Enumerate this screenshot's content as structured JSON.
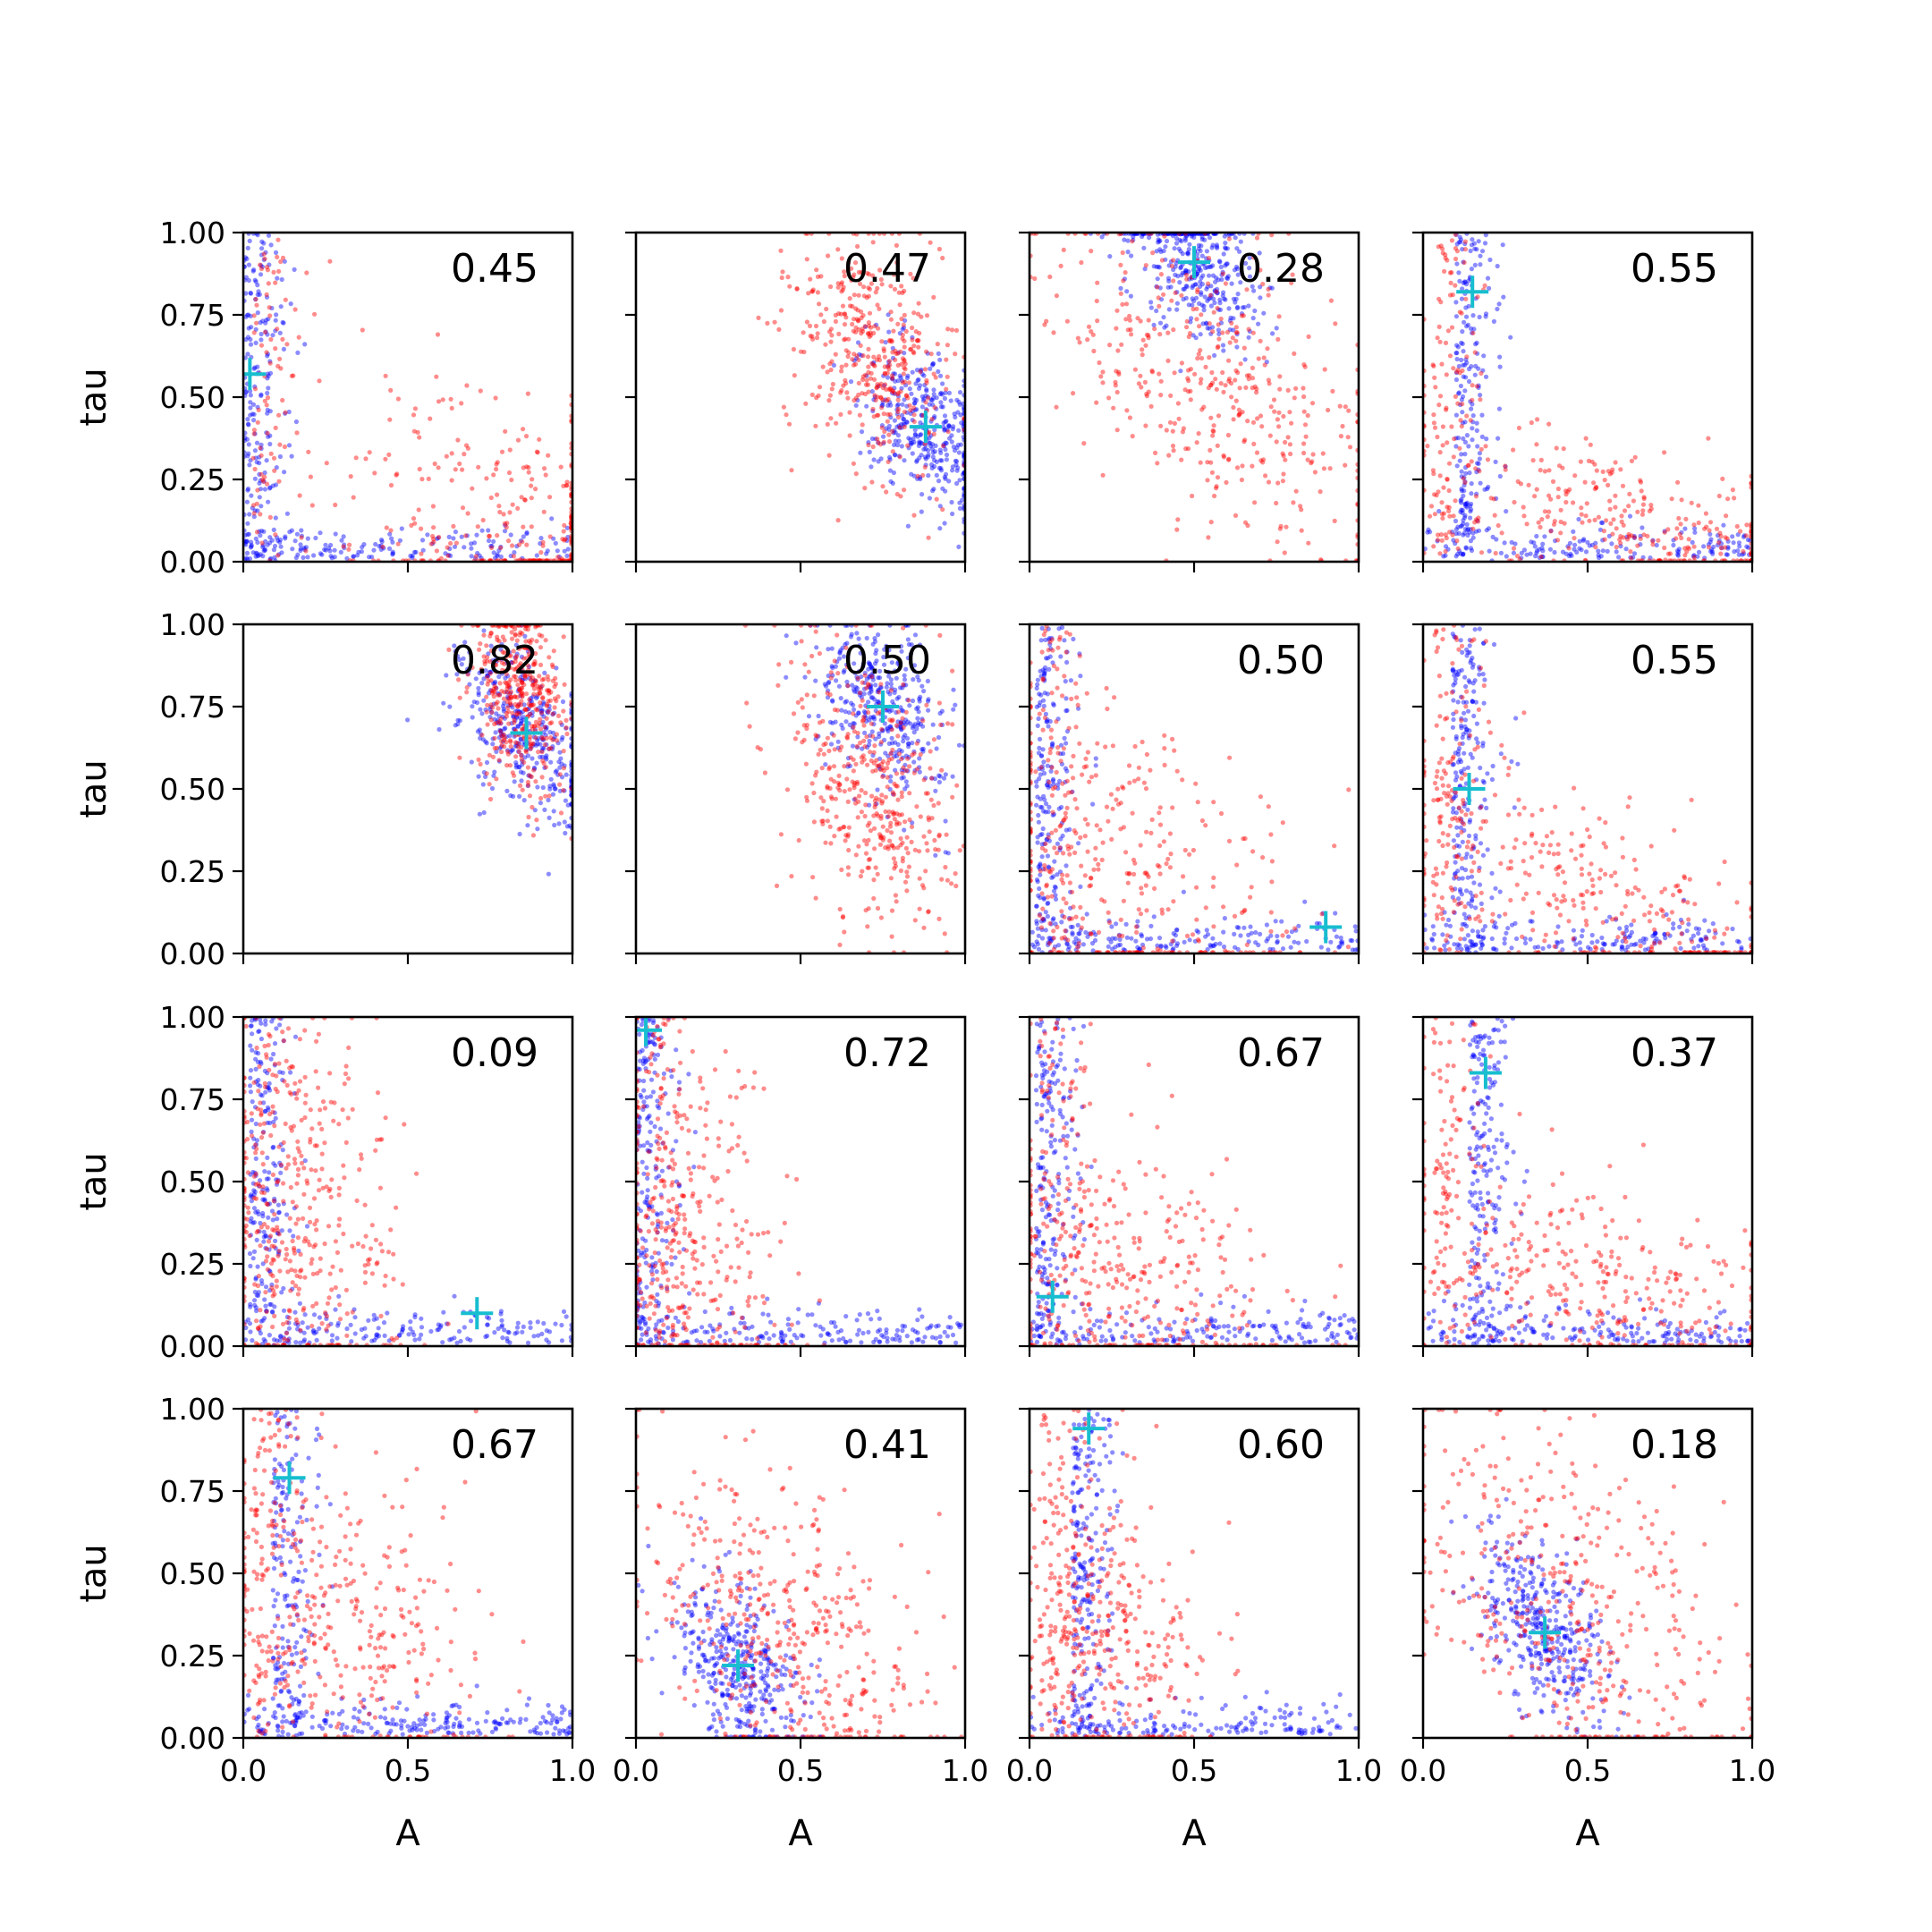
{
  "chart_data": {
    "type": "scatter",
    "layout": "4x4 grid of subplots",
    "shared_x": true,
    "shared_y": true,
    "xlabel": "A",
    "ylabel": "tau",
    "xlim": [
      0,
      1
    ],
    "ylim": [
      0,
      1
    ],
    "xticks": [
      "0.0",
      "0.5",
      "1.0"
    ],
    "yticks": [
      "0.00",
      "0.25",
      "0.50",
      "0.75",
      "1.00"
    ],
    "grid": false,
    "colors": {
      "series_a": "#ff0000",
      "series_b": "#0000ff",
      "marker": "#17becf"
    },
    "panels": [
      {
        "row": 0,
        "col": 0,
        "label": "0.45",
        "marker": [
          0.02,
          0.57
        ],
        "shape": "L",
        "red": {
          "cx": 0.85,
          "cy": 0.08,
          "sx": 0.25,
          "sy": 0.2
        }
      },
      {
        "row": 0,
        "col": 1,
        "label": "0.47",
        "marker": [
          0.88,
          0.41
        ],
        "shape": "blob",
        "red": {
          "cx": 0.72,
          "cy": 0.62,
          "sx": 0.12,
          "sy": 0.18
        }
      },
      {
        "row": 0,
        "col": 2,
        "label": "0.28",
        "marker": [
          0.5,
          0.91
        ],
        "shape": "blob",
        "red": {
          "cx": 0.55,
          "cy": 0.55,
          "sx": 0.25,
          "sy": 0.22
        }
      },
      {
        "row": 0,
        "col": 3,
        "label": "0.55",
        "marker": [
          0.15,
          0.82
        ],
        "shape": "L",
        "red": {
          "cx": 0.6,
          "cy": 0.12,
          "sx": 0.3,
          "sy": 0.1
        }
      },
      {
        "row": 1,
        "col": 0,
        "label": "0.82",
        "marker": [
          0.86,
          0.67
        ],
        "shape": "blob",
        "red": {
          "cx": 0.84,
          "cy": 0.78,
          "sx": 0.07,
          "sy": 0.14
        }
      },
      {
        "row": 1,
        "col": 1,
        "label": "0.50",
        "marker": [
          0.75,
          0.75
        ],
        "shape": "blob",
        "red": {
          "cx": 0.72,
          "cy": 0.5,
          "sx": 0.12,
          "sy": 0.22
        }
      },
      {
        "row": 1,
        "col": 2,
        "label": "0.50",
        "marker": [
          0.9,
          0.08
        ],
        "shape": "L",
        "red": {
          "cx": 0.3,
          "cy": 0.25,
          "sx": 0.25,
          "sy": 0.25
        }
      },
      {
        "row": 1,
        "col": 3,
        "label": "0.55",
        "marker": [
          0.14,
          0.5
        ],
        "shape": "L",
        "red": {
          "cx": 0.5,
          "cy": 0.15,
          "sx": 0.3,
          "sy": 0.15
        }
      },
      {
        "row": 2,
        "col": 0,
        "label": "0.09",
        "marker": [
          0.71,
          0.1
        ],
        "shape": "L",
        "red": {
          "cx": 0.2,
          "cy": 0.4,
          "sx": 0.15,
          "sy": 0.3
        }
      },
      {
        "row": 2,
        "col": 1,
        "label": "0.72",
        "marker": [
          0.03,
          0.96
        ],
        "shape": "L",
        "red": {
          "cx": 0.15,
          "cy": 0.3,
          "sx": 0.15,
          "sy": 0.3
        }
      },
      {
        "row": 2,
        "col": 2,
        "label": "0.67",
        "marker": [
          0.07,
          0.15
        ],
        "shape": "L",
        "red": {
          "cx": 0.3,
          "cy": 0.2,
          "sx": 0.25,
          "sy": 0.2
        }
      },
      {
        "row": 2,
        "col": 3,
        "label": "0.37",
        "marker": [
          0.19,
          0.83
        ],
        "shape": "L",
        "red": {
          "cx": 0.5,
          "cy": 0.2,
          "sx": 0.3,
          "sy": 0.15
        }
      },
      {
        "row": 3,
        "col": 0,
        "label": "0.67",
        "marker": [
          0.14,
          0.79
        ],
        "shape": "L",
        "red": {
          "cx": 0.3,
          "cy": 0.35,
          "sx": 0.2,
          "sy": 0.25
        }
      },
      {
        "row": 3,
        "col": 1,
        "label": "0.41",
        "marker": [
          0.31,
          0.22
        ],
        "shape": "blob",
        "red": {
          "cx": 0.45,
          "cy": 0.35,
          "sx": 0.22,
          "sy": 0.22
        }
      },
      {
        "row": 3,
        "col": 2,
        "label": "0.60",
        "marker": [
          0.18,
          0.94
        ],
        "shape": "L",
        "red": {
          "cx": 0.25,
          "cy": 0.3,
          "sx": 0.15,
          "sy": 0.25
        }
      },
      {
        "row": 3,
        "col": 3,
        "label": "0.18",
        "marker": [
          0.37,
          0.32
        ],
        "shape": "blob",
        "red": {
          "cx": 0.45,
          "cy": 0.4,
          "sx": 0.25,
          "sy": 0.25
        }
      }
    ]
  }
}
